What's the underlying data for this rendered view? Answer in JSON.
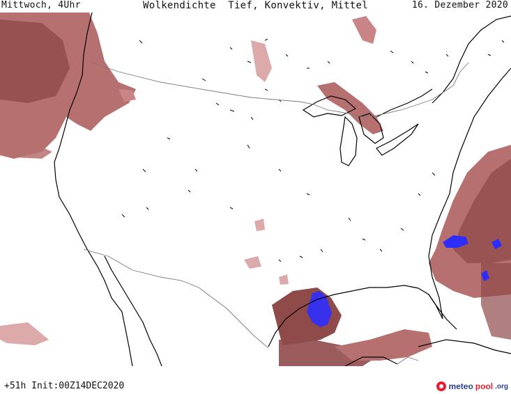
{
  "header": {
    "left": "Mittwoch, 4Uhr",
    "center": "Wolkendichte  Tief, Konvektiv, Mittel",
    "right": "16. Dezember 2020"
  },
  "footer": {
    "run": "+51h Init:00Z14DEC2020"
  },
  "logo": {
    "meteo": "meteo",
    "pool": "pool",
    "org": ".org"
  },
  "colors": {
    "cloud_dense": "#8f4a4a",
    "cloud_medium": "#b77070",
    "cloud_light": "#dcaaaa",
    "convective": "#2d2dff",
    "coastline": "#000000",
    "border": "#7a7a7a"
  }
}
